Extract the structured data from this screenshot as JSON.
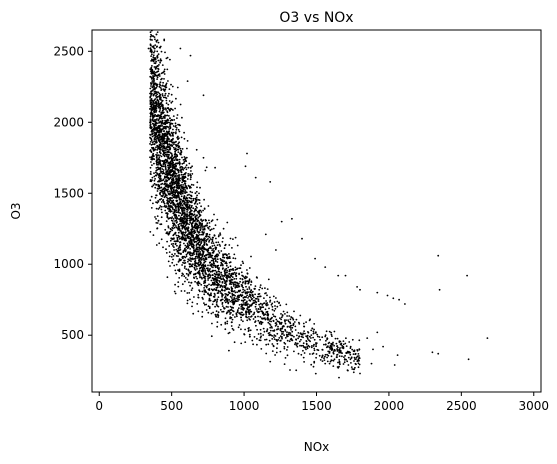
{
  "chart_data": {
    "type": "scatter",
    "title": "O3 vs NOx",
    "xlabel": "NOx",
    "ylabel": "O3",
    "xlim": [
      -50,
      3050
    ],
    "ylim": [
      100,
      2650
    ],
    "xticks": [
      0,
      500,
      1000,
      1500,
      2000,
      2500,
      3000
    ],
    "yticks": [
      500,
      1000,
      1500,
      2000,
      2500
    ],
    "grid": false,
    "marker_color": "#000000",
    "trend": {
      "description_points": [
        {
          "x": 350,
          "y": 2200
        },
        {
          "x": 450,
          "y": 1800
        },
        {
          "x": 550,
          "y": 1450
        },
        {
          "x": 650,
          "y": 1200
        },
        {
          "x": 750,
          "y": 1020
        },
        {
          "x": 900,
          "y": 860
        },
        {
          "x": 1050,
          "y": 720
        },
        {
          "x": 1250,
          "y": 560
        },
        {
          "x": 1500,
          "y": 430
        },
        {
          "x": 1800,
          "y": 330
        }
      ]
    },
    "points": [
      {
        "x": 340,
        "y": 2520
      },
      {
        "x": 360,
        "y": 2510
      },
      {
        "x": 380,
        "y": 2520
      },
      {
        "x": 560,
        "y": 2520
      },
      {
        "x": 410,
        "y": 2480
      },
      {
        "x": 630,
        "y": 2470
      },
      {
        "x": 610,
        "y": 2290
      },
      {
        "x": 720,
        "y": 2190
      },
      {
        "x": 420,
        "y": 2420
      },
      {
        "x": 440,
        "y": 2350
      },
      {
        "x": 800,
        "y": 1680
      },
      {
        "x": 720,
        "y": 1750
      },
      {
        "x": 1020,
        "y": 1780
      },
      {
        "x": 1010,
        "y": 1690
      },
      {
        "x": 1080,
        "y": 1610
      },
      {
        "x": 1180,
        "y": 1580
      },
      {
        "x": 1260,
        "y": 1300
      },
      {
        "x": 1330,
        "y": 1320
      },
      {
        "x": 1150,
        "y": 1210
      },
      {
        "x": 1400,
        "y": 1180
      },
      {
        "x": 1220,
        "y": 1100
      },
      {
        "x": 1490,
        "y": 1040
      },
      {
        "x": 1560,
        "y": 980
      },
      {
        "x": 1650,
        "y": 920
      },
      {
        "x": 1700,
        "y": 920
      },
      {
        "x": 1780,
        "y": 840
      },
      {
        "x": 1800,
        "y": 820
      },
      {
        "x": 1920,
        "y": 800
      },
      {
        "x": 1990,
        "y": 780
      },
      {
        "x": 2030,
        "y": 760
      },
      {
        "x": 2070,
        "y": 750
      },
      {
        "x": 2110,
        "y": 720
      },
      {
        "x": 2340,
        "y": 1060
      },
      {
        "x": 2540,
        "y": 920
      },
      {
        "x": 2350,
        "y": 820
      },
      {
        "x": 2680,
        "y": 480
      },
      {
        "x": 2300,
        "y": 380
      },
      {
        "x": 2340,
        "y": 370
      },
      {
        "x": 2550,
        "y": 330
      },
      {
        "x": 1920,
        "y": 520
      },
      {
        "x": 1850,
        "y": 480
      },
      {
        "x": 1960,
        "y": 420
      },
      {
        "x": 1890,
        "y": 400
      },
      {
        "x": 2060,
        "y": 360
      },
      {
        "x": 2040,
        "y": 290
      },
      {
        "x": 1880,
        "y": 300
      },
      {
        "x": 1720,
        "y": 290
      },
      {
        "x": 1650,
        "y": 270
      },
      {
        "x": 1600,
        "y": 410
      },
      {
        "x": 1560,
        "y": 300
      },
      {
        "x": 1800,
        "y": 230
      },
      {
        "x": 1760,
        "y": 260
      }
    ]
  }
}
